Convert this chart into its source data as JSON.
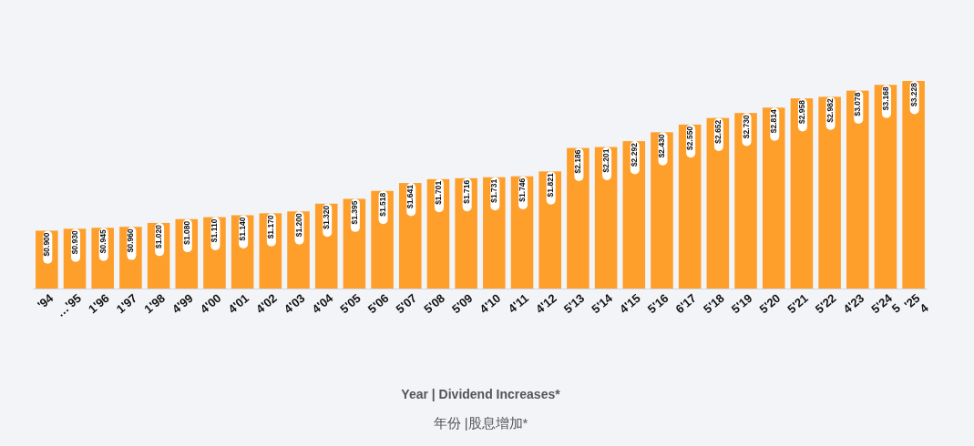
{
  "chart_data": {
    "type": "bar",
    "annotations": [
      "Year | Dividend Increases*",
      "年份 |股息增加*"
    ],
    "color": "#fe9f2b",
    "categories": [
      "'94",
      "…'95",
      "1'96",
      "1'97",
      "1'98",
      "4'99",
      "4'00",
      "4'01",
      "4'02",
      "4'03",
      "4'04",
      "5'05",
      "5'06",
      "5'07",
      "5'08",
      "5'09",
      "4'10",
      "4'11",
      "4'12",
      "5'13",
      "5'14",
      "4'15",
      "5'16",
      "6'17",
      "5'18",
      "5'19",
      "5'20",
      "5'21",
      "5'22",
      "4'23",
      "5'24\n5",
      "'25\n4"
    ],
    "values": [
      0.9,
      0.93,
      0.945,
      0.96,
      1.02,
      1.08,
      1.11,
      1.14,
      1.17,
      1.2,
      1.32,
      1.395,
      1.518,
      1.641,
      1.701,
      1.716,
      1.731,
      1.746,
      1.821,
      2.186,
      2.201,
      2.292,
      2.43,
      2.55,
      2.652,
      2.73,
      2.814,
      2.958,
      2.982,
      3.078,
      3.168,
      3.228
    ],
    "value_labels": [
      "$0.900",
      "$0.930",
      "$0.945",
      "$0.960",
      "$1.020",
      "$1.080",
      "$1.110",
      "$1.140",
      "$1.170",
      "$1.200",
      "$1.320",
      "$1.395",
      "$1.518",
      "$1.641",
      "$1.701",
      "$1.716",
      "$1.731",
      "$1.746",
      "$1.821",
      "$2.186",
      "$2.201",
      "$2.292",
      "$2.430",
      "$2.550",
      "$2.652",
      "$2.730",
      "$2.814",
      "$2.958",
      "$2.982",
      "$3.078",
      "$3.168",
      "$3.228"
    ]
  }
}
